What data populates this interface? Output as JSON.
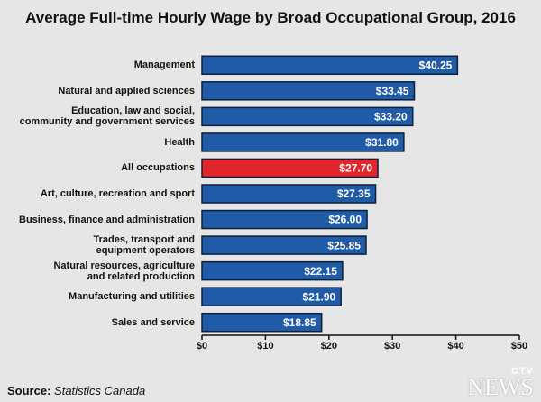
{
  "chart_data": {
    "type": "hbar",
    "title": "Average Full-time Hourly Wage by Broad Occupational Group, 2016",
    "categories": [
      "Management",
      "Natural and applied sciences",
      "Education, law and social,\ncommunity and government services",
      "Health",
      "All occupations",
      "Art, culture, recreation and sport",
      "Business, finance and administration",
      "Trades, transport and\nequipment operators",
      "Natural resources, agriculture\nand related production",
      "Manufacturing and utilities",
      "Sales and service"
    ],
    "values": [
      40.25,
      33.45,
      33.2,
      31.8,
      27.7,
      27.35,
      26.0,
      25.85,
      22.15,
      21.9,
      18.85
    ],
    "value_labels": [
      "$40.25",
      "$33.45",
      "$33.20",
      "$31.80",
      "$27.70",
      "$27.35",
      "$26.00",
      "$25.85",
      "$22.15",
      "$21.90",
      "$18.85"
    ],
    "colors": [
      "#1f5ba6",
      "#1f5ba6",
      "#1f5ba6",
      "#1f5ba6",
      "#e3262b",
      "#1f5ba6",
      "#1f5ba6",
      "#1f5ba6",
      "#1f5ba6",
      "#1f5ba6",
      "#1f5ba6"
    ],
    "xlim": [
      0,
      50
    ],
    "xticks": [
      {
        "value": 0,
        "label": "$0"
      },
      {
        "value": 10,
        "label": "$10"
      },
      {
        "value": 20,
        "label": "$20"
      },
      {
        "value": 30,
        "label": "$30"
      },
      {
        "value": 40,
        "label": "$40"
      },
      {
        "value": 50,
        "label": "$50"
      }
    ],
    "source": {
      "label": "Source:",
      "text": "Statistics Canada"
    },
    "logo": {
      "top": "CTV",
      "bottom": "NEWS"
    }
  }
}
